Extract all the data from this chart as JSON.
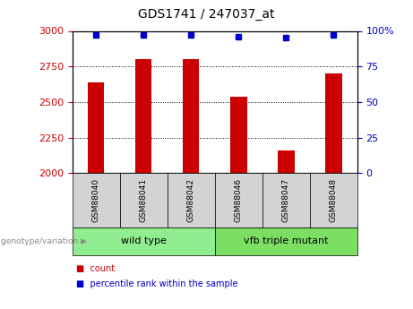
{
  "title": "GDS1741 / 247037_at",
  "samples": [
    "GSM88040",
    "GSM88041",
    "GSM88042",
    "GSM88046",
    "GSM88047",
    "GSM88048"
  ],
  "bar_values": [
    2640,
    2800,
    2800,
    2540,
    2160,
    2700
  ],
  "percentile_values": [
    97,
    97,
    97,
    96,
    95,
    97
  ],
  "bar_color": "#cc0000",
  "percentile_color": "#0000cc",
  "ylim_left": [
    2000,
    3000
  ],
  "ylim_right": [
    0,
    100
  ],
  "yticks_left": [
    2000,
    2250,
    2500,
    2750,
    3000
  ],
  "yticks_right": [
    0,
    25,
    50,
    75,
    100
  ],
  "groups": [
    {
      "label": "wild type",
      "color": "#90ee90",
      "count": 3
    },
    {
      "label": "vfb triple mutant",
      "color": "#7cdf64",
      "count": 3
    }
  ],
  "group_label_prefix": "genotype/variation",
  "legend_count_label": "count",
  "legend_percentile_label": "percentile rank within the sample",
  "bar_width": 0.35,
  "tick_label_color_left": "#cc0000",
  "tick_label_color_right": "#0000cc",
  "sample_box_color": "#d3d3d3",
  "right_axis_pct_label": "100%"
}
